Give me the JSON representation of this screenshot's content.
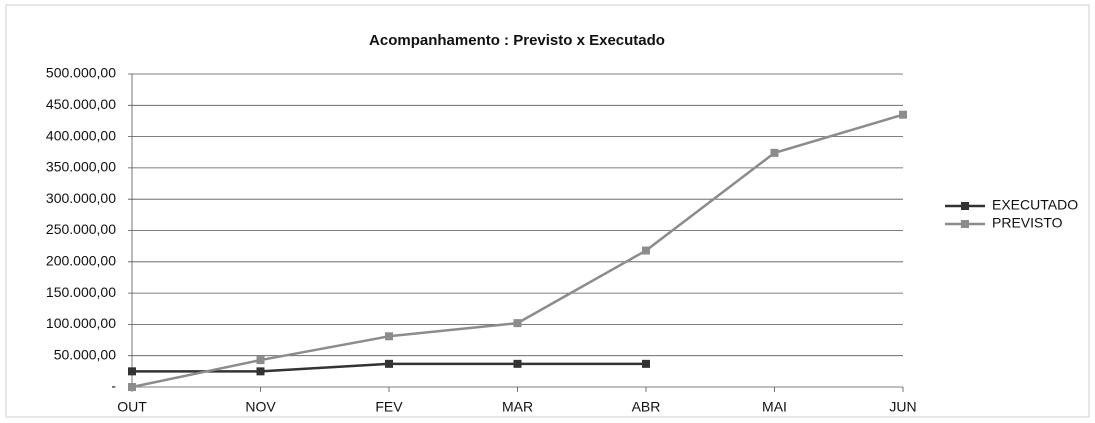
{
  "chart_data": {
    "type": "line",
    "title": "Acompanhamento : Previsto x Executado",
    "categories": [
      "OUT",
      "NOV",
      "FEV",
      "MAR",
      "ABR",
      "MAI",
      "JUN"
    ],
    "series": [
      {
        "name": "EXECUTADO",
        "color": "#333333",
        "values": [
          25000,
          25000,
          37000,
          37000,
          37000,
          null,
          null
        ]
      },
      {
        "name": "PREVISTO",
        "color": "#8c8c8c",
        "values": [
          0,
          43000,
          81000,
          102000,
          218000,
          374000,
          435000
        ]
      }
    ],
    "ylim": [
      0,
      500000
    ],
    "yticks": [
      {
        "value": 0,
        "label": "-"
      },
      {
        "value": 50000,
        "label": "50.000,00"
      },
      {
        "value": 100000,
        "label": "100.000,00"
      },
      {
        "value": 150000,
        "label": "150.000,00"
      },
      {
        "value": 200000,
        "label": "200.000,00"
      },
      {
        "value": 250000,
        "label": "250.000,00"
      },
      {
        "value": 300000,
        "label": "300.000,00"
      },
      {
        "value": 350000,
        "label": "350.000,00"
      },
      {
        "value": 400000,
        "label": "400.000,00"
      },
      {
        "value": 450000,
        "label": "450.000,00"
      },
      {
        "value": 500000,
        "label": "500.000,00"
      }
    ],
    "grid": true,
    "legend": "right"
  }
}
